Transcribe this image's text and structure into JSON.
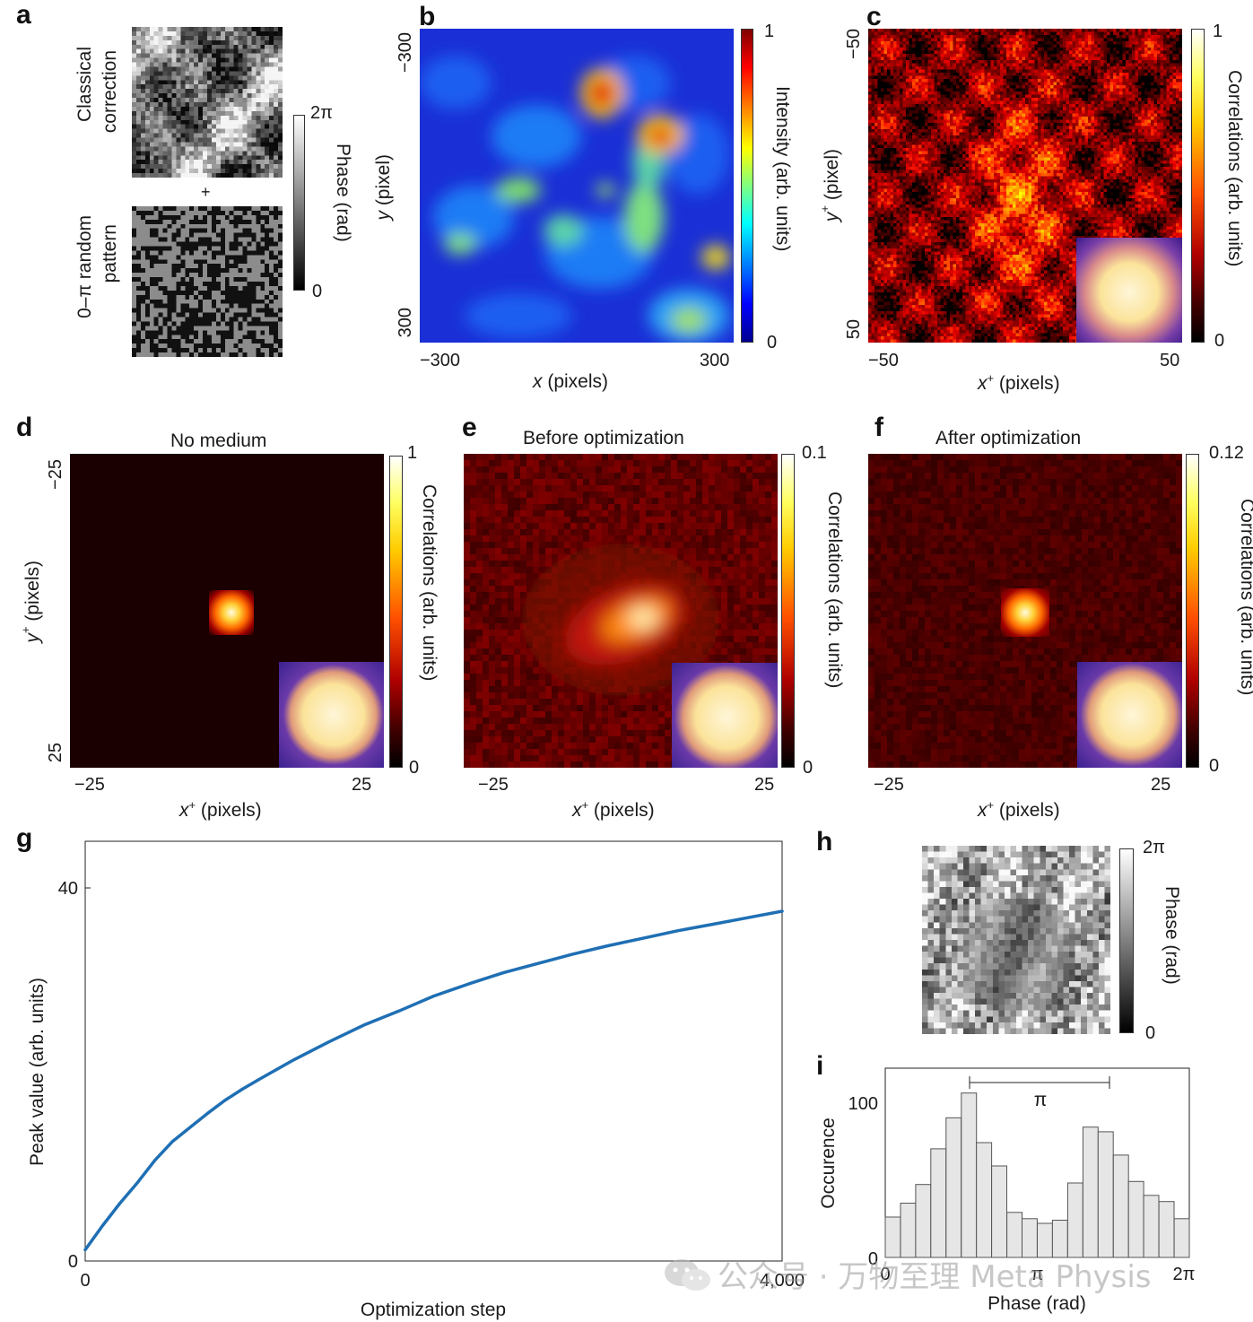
{
  "panel_labels": {
    "a": "a",
    "b": "b",
    "c": "c",
    "d": "d",
    "e": "e",
    "f": "f",
    "g": "g",
    "h": "h",
    "i": "i"
  },
  "panel_a": {
    "top_label_1": "Classical",
    "top_label_2": "correction",
    "plus": "+",
    "bottom_label_1": "0–π random",
    "bottom_label_2": "pattern",
    "cbar_max": "2π",
    "cbar_min": "0",
    "cbar_label": "Phase (rad)"
  },
  "panel_b": {
    "ytick_top": "−300",
    "ytick_bottom": "300",
    "xtick_left": "−300",
    "xtick_right": "300",
    "ylabel_var": "y",
    "ylabel_unit": " (pixel)",
    "xlabel_var": "x",
    "xlabel_unit": " (pixels)",
    "cbar_max": "1",
    "cbar_min": "0",
    "cbar_label": "Intensity (arb. units)"
  },
  "panel_c": {
    "ytick_top": "−50",
    "ytick_bottom": "50",
    "xtick_left": "−50",
    "xtick_right": "50",
    "ylabel_var": "y",
    "ylabel_sup": "+",
    "ylabel_unit": " (pixel)",
    "xlabel_var": "x",
    "xlabel_sup": "+",
    "xlabel_unit": " (pixels)",
    "cbar_max": "1",
    "cbar_min": "0",
    "cbar_label": "Correlations (arb. units)"
  },
  "panel_d": {
    "title": "No medium",
    "ytick_top": "−25",
    "ytick_bottom": "25",
    "xtick_left": "−25",
    "xtick_right": "25",
    "ylabel_var": "y",
    "ylabel_sup": "+",
    "ylabel_unit": " (pixels)",
    "xlabel_var": "x",
    "xlabel_sup": "+",
    "xlabel_unit": " (pixels)",
    "cbar_max": "1",
    "cbar_min": "0",
    "cbar_label": "Correlations (arb. units)"
  },
  "panel_e": {
    "title": "Before optimization",
    "xtick_left": "−25",
    "xtick_right": "25",
    "xlabel_var": "x",
    "xlabel_sup": "+",
    "xlabel_unit": " (pixels)",
    "cbar_max": "0.1",
    "cbar_min": "0",
    "cbar_label": "Correlations (arb. units)"
  },
  "panel_f": {
    "title": "After optimization",
    "xtick_left": "−25",
    "xtick_right": "25",
    "xlabel_var": "x",
    "xlabel_sup": "+",
    "xlabel_unit": " (pixels)",
    "cbar_max": "0.12",
    "cbar_min": "0",
    "cbar_label": "Correlations (arb. units)"
  },
  "panel_h": {
    "cbar_max": "2π",
    "cbar_min": "0",
    "cbar_label": "Phase (rad)"
  },
  "watermark": "公众号 · 万物至理 Meta Physis",
  "chart_data": [
    {
      "type": "line",
      "panel": "g",
      "xlabel": "Optimization step",
      "ylabel": "Peak value (arb. units)",
      "xlim": [
        0,
        4000
      ],
      "ylim": [
        0,
        45
      ],
      "xticks": [
        "0",
        "4,000"
      ],
      "yticks": [
        "0",
        "40"
      ],
      "grid": false,
      "series": [
        {
          "color": "#1f6fb4",
          "x": [
            0,
            50,
            100,
            200,
            300,
            400,
            500,
            600,
            700,
            800,
            900,
            1000,
            1200,
            1400,
            1600,
            1800,
            2000,
            2200,
            2400,
            2600,
            2800,
            3000,
            3200,
            3400,
            3600,
            3800,
            4000
          ],
          "y": [
            1.2,
            2.5,
            3.8,
            6.2,
            8.4,
            10.8,
            12.8,
            14.3,
            15.8,
            17.2,
            18.4,
            19.5,
            21.6,
            23.5,
            25.3,
            26.8,
            28.4,
            29.7,
            30.9,
            31.9,
            32.9,
            33.8,
            34.6,
            35.4,
            36.1,
            36.8,
            37.5
          ]
        }
      ]
    },
    {
      "type": "bar",
      "panel": "i",
      "xlabel": "Phase (rad)",
      "ylabel": "Occurence",
      "xticks": [
        "0",
        "π",
        "2π"
      ],
      "yticks": [
        "0",
        "100"
      ],
      "ylim": [
        0,
        122
      ],
      "annotation": "π",
      "bar_color": "#e6e6e6",
      "values": [
        26,
        35,
        47,
        70,
        90,
        106,
        74,
        59,
        29,
        25,
        22,
        24,
        48,
        84,
        81,
        66,
        49,
        40,
        36,
        25
      ]
    }
  ]
}
